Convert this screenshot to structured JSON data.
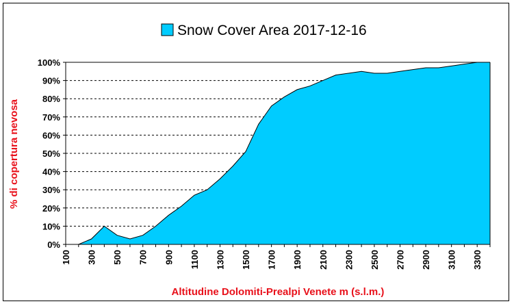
{
  "chart_data": {
    "type": "area",
    "title": "",
    "legend": {
      "entries": [
        "Snow Cover Area 2017-12-16"
      ],
      "placement": "top"
    },
    "xlabel": "Altitudine Dolomiti-Prealpi Venete m (s.l.m.)",
    "ylabel": "% di copertura nevosa",
    "xlim": [
      100,
      3400
    ],
    "ylim": [
      0,
      100
    ],
    "x_ticks": [
      "100",
      "300",
      "500",
      "700",
      "900",
      "1100",
      "1300",
      "1500",
      "1700",
      "1900",
      "2100",
      "2300",
      "2500",
      "2700",
      "2900",
      "3100",
      "3300"
    ],
    "y_ticks": [
      "0%",
      "10%",
      "20%",
      "30%",
      "40%",
      "50%",
      "60%",
      "70%",
      "80%",
      "90%",
      "100%"
    ],
    "grid": "horizontal dashed",
    "colors": {
      "fill": "#00ccff",
      "stroke": "#000000",
      "axis_title": "#e8101a"
    },
    "series": [
      {
        "name": "Snow Cover Area 2017-12-16",
        "x": [
          200,
          300,
          400,
          500,
          600,
          700,
          800,
          900,
          1000,
          1100,
          1200,
          1300,
          1400,
          1500,
          1600,
          1700,
          1800,
          1900,
          2000,
          2100,
          2200,
          2300,
          2400,
          2500,
          2600,
          2700,
          2800,
          2900,
          3000,
          3100,
          3200,
          3300,
          3400
        ],
        "values": [
          0,
          3,
          10,
          5,
          3,
          5,
          10,
          16,
          21,
          27,
          30,
          36,
          43,
          51,
          66,
          76,
          81,
          85,
          87,
          90,
          93,
          94,
          95,
          94,
          94,
          95,
          96,
          97,
          97,
          98,
          99,
          100,
          100
        ]
      }
    ]
  }
}
